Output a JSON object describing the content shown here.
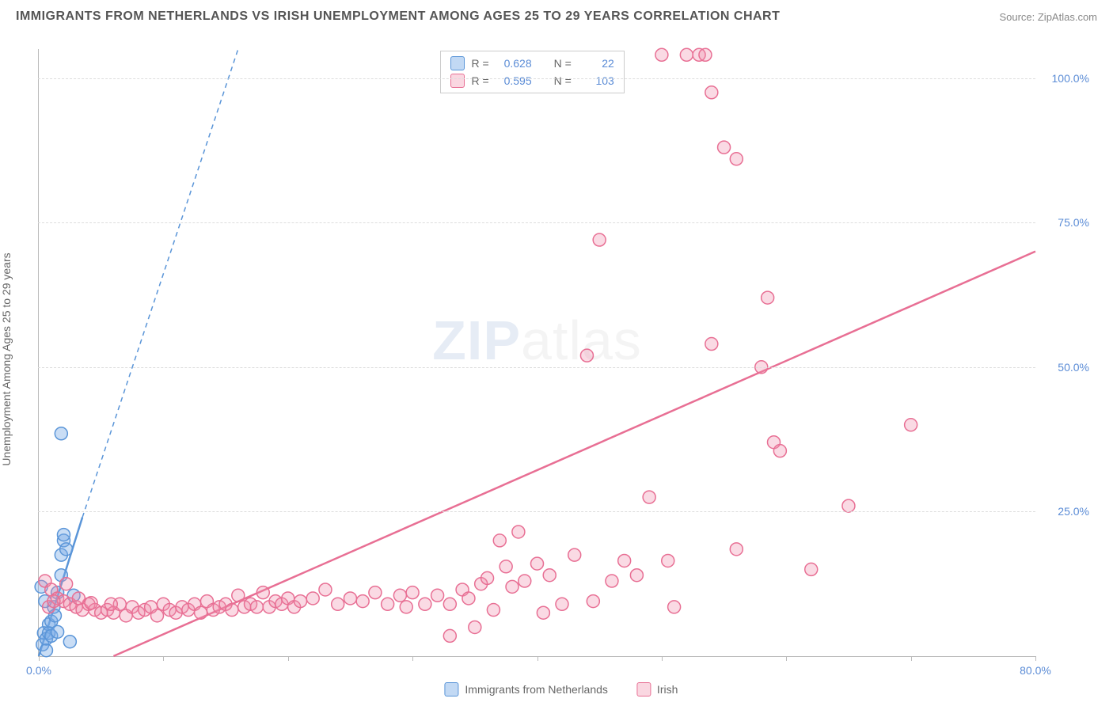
{
  "title": "IMMIGRANTS FROM NETHERLANDS VS IRISH UNEMPLOYMENT AMONG AGES 25 TO 29 YEARS CORRELATION CHART",
  "source": "Source: ZipAtlas.com",
  "y_axis_label": "Unemployment Among Ages 25 to 29 years",
  "watermark_zip": "ZIP",
  "watermark_atlas": "atlas",
  "chart": {
    "type": "scatter",
    "xlim": [
      0,
      80
    ],
    "ylim": [
      0,
      105
    ],
    "x_ticks": [
      0,
      10,
      20,
      30,
      40,
      50,
      60,
      70,
      80
    ],
    "y_ticks": [
      25,
      50,
      75,
      100
    ],
    "x_tick_labels": {
      "0": "0.0%",
      "80": "80.0%"
    },
    "y_tick_labels": {
      "25": "25.0%",
      "50": "50.0%",
      "75": "75.0%",
      "100": "100.0%"
    },
    "grid_color": "#dddddd",
    "axis_color": "#bbbbbb",
    "background_color": "#ffffff",
    "marker_radius": 8,
    "marker_stroke_width": 1.5,
    "series": [
      {
        "name": "Immigrants from Netherlands",
        "color_fill": "rgba(120,170,230,0.40)",
        "color_stroke": "#5a95d8",
        "R": "0.628",
        "N": "22",
        "trend_solid": {
          "x1": 0,
          "y1": 0,
          "x2": 3.5,
          "y2": 24
        },
        "trend_dashed": {
          "x1": 3.5,
          "y1": 24,
          "x2": 16,
          "y2": 105
        },
        "points": [
          [
            0.3,
            2.0
          ],
          [
            0.4,
            4.0
          ],
          [
            0.6,
            3.0
          ],
          [
            0.8,
            5.5
          ],
          [
            0.8,
            4.0
          ],
          [
            1.0,
            6.0
          ],
          [
            1.0,
            3.5
          ],
          [
            1.2,
            8.5
          ],
          [
            1.3,
            7.0
          ],
          [
            1.5,
            11.0
          ],
          [
            1.5,
            4.2
          ],
          [
            1.8,
            14.0
          ],
          [
            1.8,
            17.5
          ],
          [
            2.0,
            20.0
          ],
          [
            2.0,
            21.0
          ],
          [
            2.2,
            18.5
          ],
          [
            2.5,
            2.5
          ],
          [
            2.8,
            10.5
          ],
          [
            0.5,
            9.5
          ],
          [
            1.8,
            38.5
          ],
          [
            0.2,
            12.0
          ],
          [
            0.6,
            1.0
          ]
        ]
      },
      {
        "name": "Irish",
        "color_fill": "rgba(240,140,170,0.32)",
        "color_stroke": "#e86f94",
        "R": "0.595",
        "N": "103",
        "trend_solid": {
          "x1": 6,
          "y1": 0,
          "x2": 80,
          "y2": 70
        },
        "trend_dashed": null,
        "points": [
          [
            0.5,
            13.0
          ],
          [
            1.0,
            11.5
          ],
          [
            1.5,
            10.0
          ],
          [
            2.0,
            9.5
          ],
          [
            2.5,
            9.0
          ],
          [
            3.0,
            8.5
          ],
          [
            3.5,
            8.0
          ],
          [
            4.0,
            9.0
          ],
          [
            4.5,
            8.0
          ],
          [
            5.0,
            7.5
          ],
          [
            5.5,
            8.0
          ],
          [
            6.0,
            7.5
          ],
          [
            6.5,
            9.0
          ],
          [
            7.0,
            7.0
          ],
          [
            7.5,
            8.5
          ],
          [
            8.0,
            7.5
          ],
          [
            8.5,
            8.0
          ],
          [
            9.0,
            8.5
          ],
          [
            9.5,
            7.0
          ],
          [
            10.0,
            9.0
          ],
          [
            10.5,
            8.0
          ],
          [
            11.0,
            7.5
          ],
          [
            11.5,
            8.5
          ],
          [
            12.0,
            8.0
          ],
          [
            12.5,
            9.0
          ],
          [
            13.0,
            7.5
          ],
          [
            13.5,
            9.5
          ],
          [
            14.0,
            8.0
          ],
          [
            14.5,
            8.5
          ],
          [
            15.0,
            9.0
          ],
          [
            15.5,
            8.0
          ],
          [
            16.0,
            10.5
          ],
          [
            16.5,
            8.5
          ],
          [
            17.0,
            9.0
          ],
          [
            17.5,
            8.5
          ],
          [
            18.0,
            11.0
          ],
          [
            18.5,
            8.5
          ],
          [
            19.0,
            9.5
          ],
          [
            19.5,
            9.0
          ],
          [
            20.0,
            10.0
          ],
          [
            20.5,
            8.5
          ],
          [
            21.0,
            9.5
          ],
          [
            22.0,
            10.0
          ],
          [
            23.0,
            11.5
          ],
          [
            24.0,
            9.0
          ],
          [
            25.0,
            10.0
          ],
          [
            26.0,
            9.5
          ],
          [
            27.0,
            11.0
          ],
          [
            28.0,
            9.0
          ],
          [
            29.0,
            10.5
          ],
          [
            29.5,
            8.5
          ],
          [
            30.0,
            11.0
          ],
          [
            31.0,
            9.0
          ],
          [
            32.0,
            10.5
          ],
          [
            33.0,
            9.0
          ],
          [
            33.0,
            3.5
          ],
          [
            34.0,
            11.5
          ],
          [
            34.5,
            10.0
          ],
          [
            35.0,
            5.0
          ],
          [
            35.5,
            12.5
          ],
          [
            36.0,
            13.5
          ],
          [
            36.5,
            8.0
          ],
          [
            37.0,
            20.0
          ],
          [
            37.5,
            15.5
          ],
          [
            38.0,
            12.0
          ],
          [
            38.5,
            21.5
          ],
          [
            39.0,
            13.0
          ],
          [
            40.0,
            16.0
          ],
          [
            40.5,
            7.5
          ],
          [
            41.0,
            14.0
          ],
          [
            42.0,
            9.0
          ],
          [
            43.0,
            17.5
          ],
          [
            44.0,
            52.0
          ],
          [
            44.5,
            9.5
          ],
          [
            45.0,
            72.0
          ],
          [
            46.0,
            13.0
          ],
          [
            47.0,
            16.5
          ],
          [
            48.0,
            14.0
          ],
          [
            49.0,
            27.5
          ],
          [
            50.0,
            104.0
          ],
          [
            50.5,
            16.5
          ],
          [
            51.0,
            8.5
          ],
          [
            52.0,
            104.0
          ],
          [
            53.0,
            104.0
          ],
          [
            53.5,
            104.0
          ],
          [
            54.0,
            97.5
          ],
          [
            54.0,
            54.0
          ],
          [
            55.0,
            88.0
          ],
          [
            56.0,
            86.0
          ],
          [
            56.0,
            18.5
          ],
          [
            58.0,
            50.0
          ],
          [
            58.5,
            62.0
          ],
          [
            59.0,
            37.0
          ],
          [
            59.5,
            35.5
          ],
          [
            62.0,
            15.0
          ],
          [
            65.0,
            26.0
          ],
          [
            70.0,
            40.0
          ],
          [
            0.8,
            8.5
          ],
          [
            1.2,
            9.5
          ],
          [
            2.2,
            12.5
          ],
          [
            3.2,
            10.0
          ],
          [
            4.2,
            9.2
          ],
          [
            5.8,
            9.0
          ]
        ]
      }
    ]
  },
  "legend_bottom": [
    {
      "label": "Immigrants from Netherlands",
      "swatch": "blue"
    },
    {
      "label": "Irish",
      "swatch": "pink"
    }
  ],
  "legend_top_labels": {
    "R": "R =",
    "N": "N ="
  }
}
